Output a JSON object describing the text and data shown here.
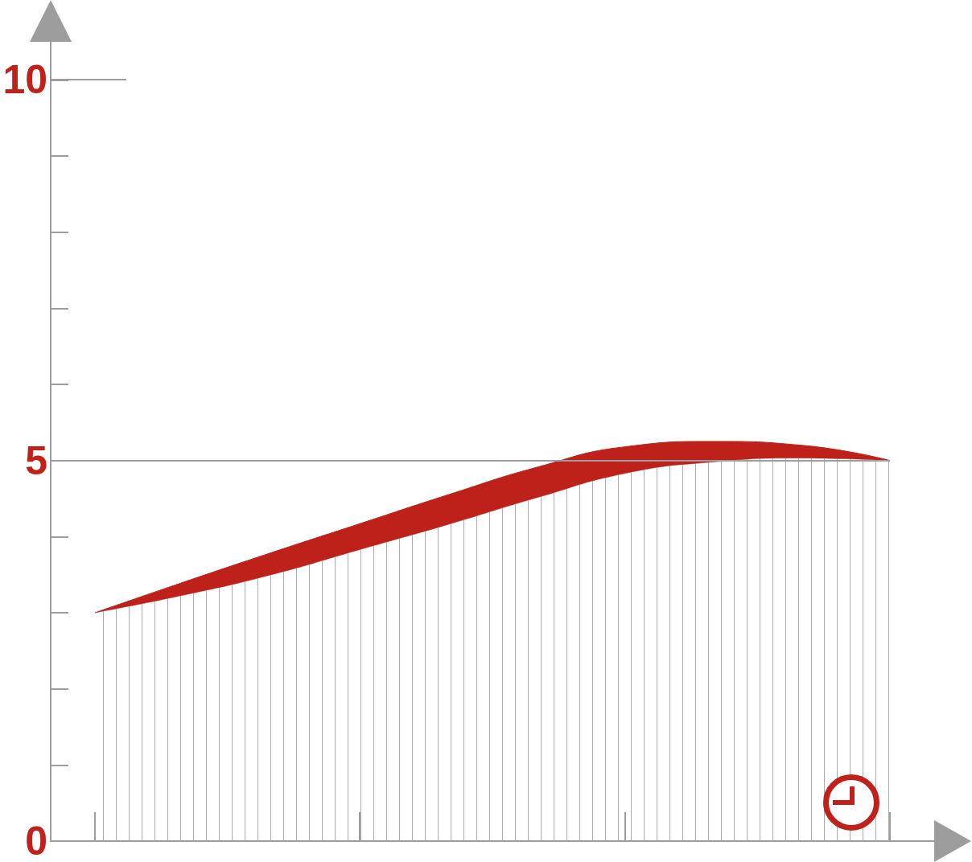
{
  "chart_data": {
    "type": "area",
    "stacked": true,
    "categories": [
      null,
      null,
      null,
      null,
      null,
      null,
      null,
      null,
      null,
      null
    ],
    "series": [
      {
        "color": "#ababab",
        "values": [
          3.0,
          3.23,
          3.5,
          3.83,
          4.16,
          4.51,
          4.83,
          4.98,
          5.03,
          5.0
        ]
      },
      {
        "color": "#be2119",
        "values": [
          0,
          0.17,
          0.29,
          0.34,
          0.39,
          0.4,
          0.35,
          0.27,
          0.17,
          0
        ]
      }
    ],
    "ylim": [
      0,
      10.5
    ],
    "yticks": [
      0,
      5,
      10
    ],
    "tick_labels": "y",
    "marker": "none",
    "ref_lines": [
      {
        "axis": "y",
        "value": 5,
        "color": "#9d9d9d"
      }
    ]
  }
}
